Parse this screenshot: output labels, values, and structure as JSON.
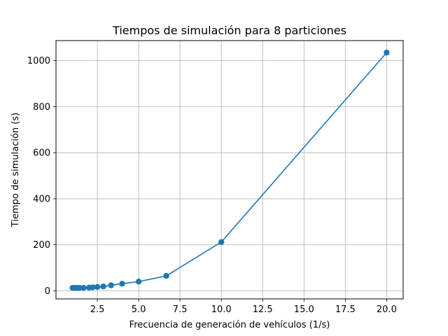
{
  "chart_data": {
    "type": "line",
    "title": "Tiempos de simulación para 8 particiones",
    "xlabel": "Frecuencia de generación de vehículos (1/s)",
    "ylabel": "Tiempo de simulación (s)",
    "xlim": [
      0,
      21
    ],
    "ylim": [
      -35,
      1087
    ],
    "grid": true,
    "xticks": [
      2.5,
      5.0,
      7.5,
      10.0,
      12.5,
      15.0,
      17.5,
      20.0
    ],
    "xtick_labels": [
      "2.5",
      "5.0",
      "7.5",
      "10.0",
      "12.5",
      "15.0",
      "17.5",
      "20.0"
    ],
    "yticks": [
      0,
      200,
      400,
      600,
      800,
      1000
    ],
    "ytick_labels": [
      "0",
      "200",
      "400",
      "600",
      "800",
      "1000"
    ],
    "series": [
      {
        "color": "#1f77b4",
        "marker": "circle",
        "x": [
          1.0,
          1.11,
          1.25,
          1.43,
          1.67,
          2.0,
          2.22,
          2.5,
          2.86,
          3.33,
          4.0,
          5.0,
          6.67,
          10.0,
          20.0
        ],
        "y": [
          13,
          13,
          13,
          13,
          13,
          14,
          15,
          17,
          19,
          24,
          31,
          40,
          65,
          212,
          1035
        ]
      }
    ]
  }
}
